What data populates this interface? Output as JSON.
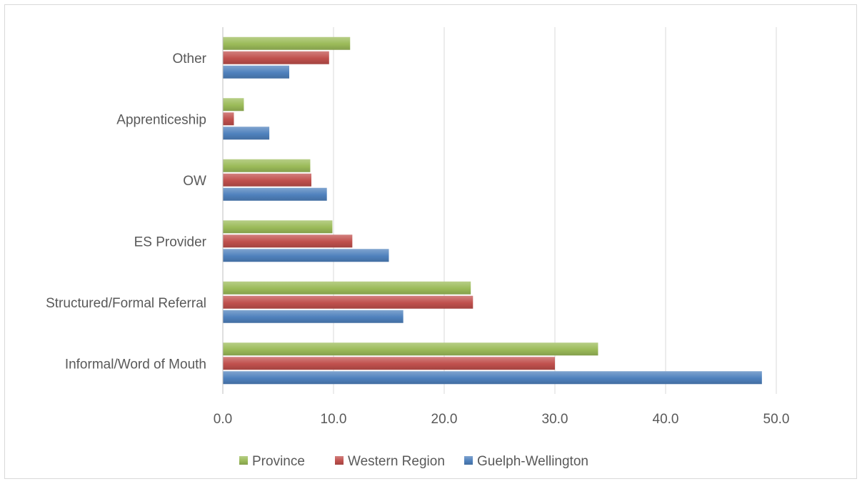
{
  "chart_data": {
    "type": "bar",
    "orientation": "horizontal",
    "categories": [
      "Informal/Word of Mouth",
      "Structured/Formal Referral",
      "ES Provider",
      "OW",
      "Apprenticeship",
      "Other"
    ],
    "series": [
      {
        "name": "Guelph-Wellington",
        "color": "#4f81bd",
        "values": [
          48.7,
          16.3,
          15.0,
          9.4,
          4.2,
          6.0
        ]
      },
      {
        "name": "Western Region",
        "color": "#c0504d",
        "values": [
          30.0,
          22.6,
          11.7,
          8.0,
          1.0,
          9.6
        ]
      },
      {
        "name": "Province",
        "color": "#9bbb59",
        "values": [
          33.9,
          22.4,
          9.9,
          7.9,
          1.9,
          11.5
        ]
      }
    ],
    "xlim": [
      0,
      50
    ],
    "xticks": [
      0,
      10,
      20,
      30,
      40,
      50
    ],
    "xtick_labels": [
      "0.0",
      "10.0",
      "20.0",
      "30.0",
      "40.0",
      "50.0"
    ],
    "legend": {
      "position": "bottom",
      "order": [
        "Province",
        "Western Region",
        "Guelph-Wellington"
      ]
    },
    "grid": "vertical",
    "title": "",
    "xlabel": "",
    "ylabel": ""
  }
}
